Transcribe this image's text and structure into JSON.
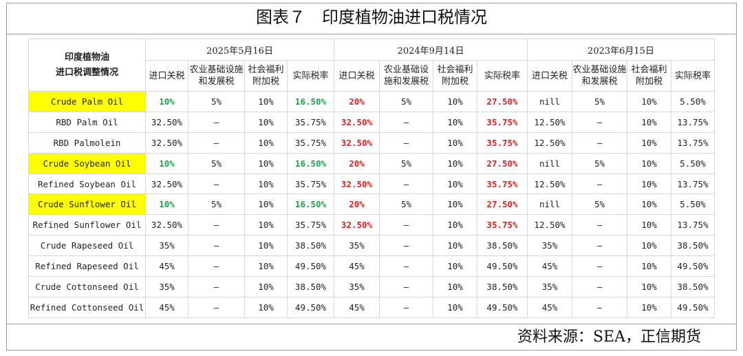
{
  "title": "图表７　印度植物油进口税情况",
  "corner_label": "印度植物油进口税调整情况",
  "periods": [
    "2025年5月16日",
    "2024年9月14日",
    "2023年6月15日"
  ],
  "columns": [
    "进口关税",
    "农业基础设施和发展税",
    "社会福利附加税",
    "实际税率"
  ],
  "rows": [
    {
      "name": "Crude Palm Oil",
      "highlight": true,
      "values": [
        "10%",
        "5%",
        "10%",
        "16.50%",
        "20%",
        "5%",
        "10%",
        "27.50%",
        "nill",
        "5%",
        "10%",
        "5.50%"
      ]
    },
    {
      "name": "RBD Palm Oil",
      "highlight": false,
      "values": [
        "32.50%",
        "—",
        "10%",
        "35.75%",
        "32.50%",
        "—",
        "10%",
        "35.75%",
        "12.50%",
        "—",
        "10%",
        "13.75%"
      ]
    },
    {
      "name": "RBD Palmolein",
      "highlight": false,
      "values": [
        "32.50%",
        "—",
        "10%",
        "35.75%",
        "32.50%",
        "—",
        "10%",
        "35.75%",
        "12.50%",
        "—",
        "10%",
        "13.75%"
      ]
    },
    {
      "name": "Crude Soybean Oil",
      "highlight": true,
      "values": [
        "10%",
        "5%",
        "10%",
        "16.50%",
        "20%",
        "5%",
        "10%",
        "27.50%",
        "nill",
        "5%",
        "10%",
        "5.50%"
      ]
    },
    {
      "name": "Refined Soybean Oil",
      "highlight": false,
      "values": [
        "32.50%",
        "—",
        "10%",
        "35.75%",
        "32.50%",
        "—",
        "10%",
        "35.75%",
        "12.50%",
        "—",
        "10%",
        "13.75%"
      ]
    },
    {
      "name": "Crude Sunflower Oil",
      "highlight": true,
      "values": [
        "10%",
        "5%",
        "10%",
        "16.50%",
        "20%",
        "5%",
        "10%",
        "27.50%",
        "nill",
        "5%",
        "10%",
        "5.50%"
      ]
    },
    {
      "name": "Refined Sunflower Oil",
      "highlight": false,
      "values": [
        "32.50%",
        "—",
        "10%",
        "35.75%",
        "32.50%",
        "—",
        "10%",
        "35.75%",
        "12.50%",
        "—",
        "10%",
        "13.75%"
      ]
    },
    {
      "name": "Crude Rapeseed Oil",
      "highlight": false,
      "values": [
        "35%",
        "—",
        "10%",
        "38.50%",
        "35%",
        "—",
        "10%",
        "38.50%",
        "35%",
        "—",
        "10%",
        "38.50%"
      ]
    },
    {
      "name": "Refined Rapeseed Oil",
      "highlight": false,
      "values": [
        "45%",
        "—",
        "10%",
        "49.50%",
        "45%",
        "—",
        "10%",
        "49.50%",
        "45%",
        "—",
        "10%",
        "49.50%"
      ]
    },
    {
      "name": "Crude Cottonseed Oil",
      "highlight": false,
      "values": [
        "35%",
        "—",
        "10%",
        "38.50%",
        "35%",
        "—",
        "10%",
        "38.50%",
        "35%",
        "—",
        "10%",
        "38.50%"
      ]
    },
    {
      "name": "Refined Cottonseed Oil",
      "highlight": false,
      "values": [
        "45%",
        "—",
        "10%",
        "49.50%",
        "45%",
        "—",
        "10%",
        "49.50%",
        "45%",
        "—",
        "10%",
        "49.50%"
      ]
    }
  ],
  "colors": {
    "up": "#e02020",
    "down": "#1aa34a",
    "highlight": "#ffff00"
  },
  "source": "资料来源：SEA，正信期货"
}
